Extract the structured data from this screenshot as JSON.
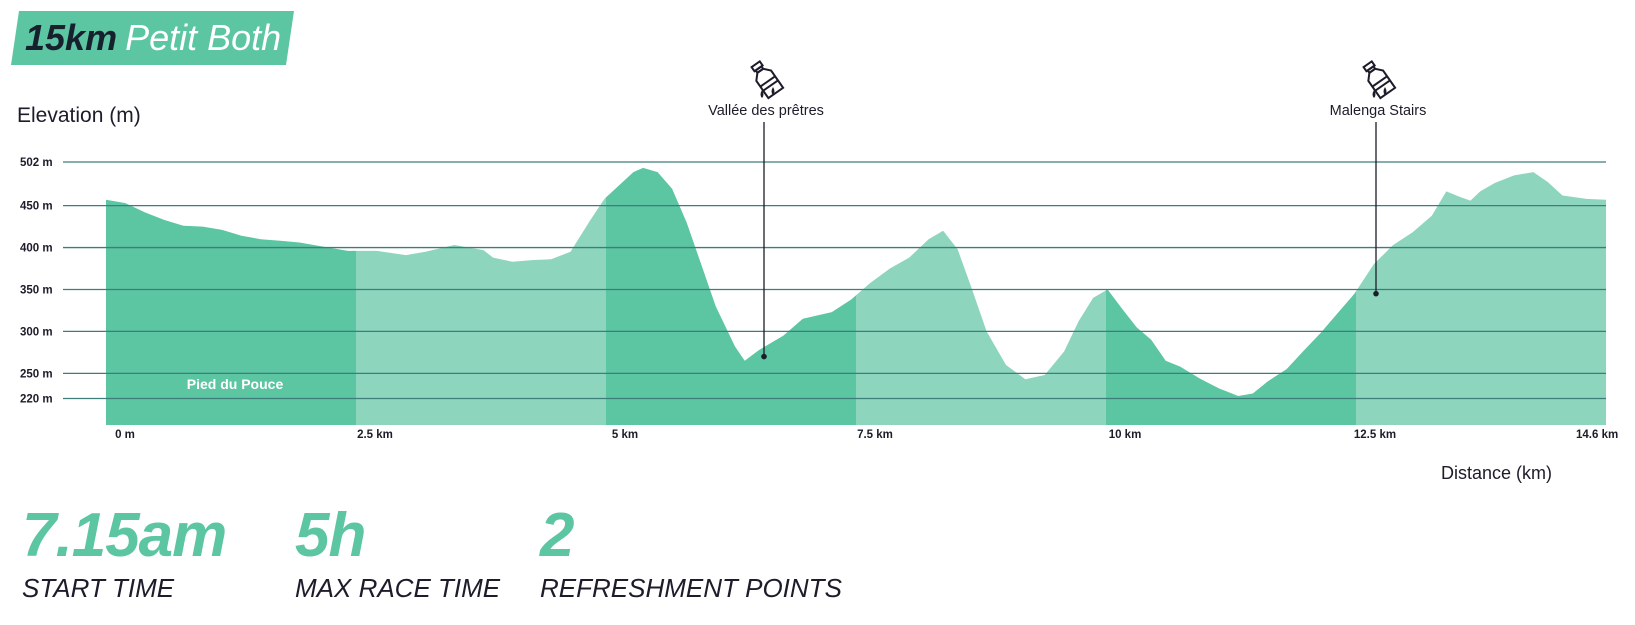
{
  "header": {
    "distance": "15km",
    "name": "Petit Both",
    "banner_color": "#5cc5a2"
  },
  "colors": {
    "dark_segment": "#5cc5a2",
    "light_segment": "#8dd6bd",
    "gridline": "#3d7d7a",
    "text": "#1c1c2a"
  },
  "chart_data": {
    "type": "area",
    "ylabel": "Elevation (m)",
    "xlabel": "Distance (km)",
    "y_ticks": [
      {
        "value": 502,
        "label": "502 m"
      },
      {
        "value": 450,
        "label": "450 m"
      },
      {
        "value": 400,
        "label": "400 m"
      },
      {
        "value": 350,
        "label": "350 m"
      },
      {
        "value": 300,
        "label": "300 m"
      },
      {
        "value": 250,
        "label": "250 m"
      },
      {
        "value": 220,
        "label": "220 m"
      }
    ],
    "x_ticks": [
      {
        "value": 0,
        "label": "0 m"
      },
      {
        "value": 2.5,
        "label": "2.5 km"
      },
      {
        "value": 5,
        "label": "5 km"
      },
      {
        "value": 7.5,
        "label": "7.5 km"
      },
      {
        "value": 10,
        "label": "10 km"
      },
      {
        "value": 12.5,
        "label": "12.5 km"
      },
      {
        "value": 14.6,
        "label": "14.6 km"
      }
    ],
    "xlim": [
      0,
      14.6
    ],
    "segments": [
      {
        "from": 0,
        "to": 2.5,
        "shade": "dark"
      },
      {
        "from": 2.5,
        "to": 5,
        "shade": "light"
      },
      {
        "from": 5,
        "to": 7.5,
        "shade": "dark"
      },
      {
        "from": 7.5,
        "to": 10,
        "shade": "light"
      },
      {
        "from": 10,
        "to": 12.5,
        "shade": "dark"
      },
      {
        "from": 12.5,
        "to": 14.6,
        "shade": "light"
      }
    ],
    "profile": [
      [
        0,
        457
      ],
      [
        0.2,
        453
      ],
      [
        0.4,
        442
      ],
      [
        0.6,
        433
      ],
      [
        0.8,
        426
      ],
      [
        1.0,
        425
      ],
      [
        1.2,
        421
      ],
      [
        1.4,
        414
      ],
      [
        1.6,
        410
      ],
      [
        1.8,
        408
      ],
      [
        2.0,
        406
      ],
      [
        2.2,
        402
      ],
      [
        2.5,
        396
      ],
      [
        2.8,
        396
      ],
      [
        3.1,
        391
      ],
      [
        3.3,
        395
      ],
      [
        3.6,
        403
      ],
      [
        3.9,
        397
      ],
      [
        4.0,
        388
      ],
      [
        4.2,
        383
      ],
      [
        4.4,
        385
      ],
      [
        4.6,
        386
      ],
      [
        4.8,
        395
      ],
      [
        5.0,
        432
      ],
      [
        5.15,
        458
      ],
      [
        5.3,
        474
      ],
      [
        5.45,
        490
      ],
      [
        5.55,
        495
      ],
      [
        5.7,
        490
      ],
      [
        5.85,
        470
      ],
      [
        6.0,
        430
      ],
      [
        6.15,
        380
      ],
      [
        6.3,
        330
      ],
      [
        6.5,
        282
      ],
      [
        6.6,
        265
      ],
      [
        6.75,
        278
      ],
      [
        7.0,
        295
      ],
      [
        7.2,
        315
      ],
      [
        7.5,
        323
      ],
      [
        7.7,
        338
      ],
      [
        7.9,
        358
      ],
      [
        8.1,
        375
      ],
      [
        8.3,
        388
      ],
      [
        8.5,
        410
      ],
      [
        8.65,
        420
      ],
      [
        8.8,
        398
      ],
      [
        8.95,
        350
      ],
      [
        9.1,
        300
      ],
      [
        9.3,
        260
      ],
      [
        9.5,
        243
      ],
      [
        9.7,
        248
      ],
      [
        9.9,
        276
      ],
      [
        10.05,
        312
      ],
      [
        10.2,
        340
      ],
      [
        10.35,
        350
      ],
      [
        10.5,
        327
      ],
      [
        10.65,
        305
      ],
      [
        10.8,
        290
      ],
      [
        10.95,
        265
      ],
      [
        11.1,
        258
      ],
      [
        11.3,
        244
      ],
      [
        11.5,
        232
      ],
      [
        11.7,
        223
      ],
      [
        11.85,
        226
      ],
      [
        12.0,
        240
      ],
      [
        12.2,
        255
      ],
      [
        12.4,
        280
      ],
      [
        12.55,
        298
      ],
      [
        12.7,
        318
      ],
      [
        12.9,
        345
      ],
      [
        13.1,
        380
      ],
      [
        13.3,
        403
      ],
      [
        13.5,
        418
      ],
      [
        13.7,
        438
      ],
      [
        13.85,
        467
      ],
      [
        14.0,
        460
      ],
      [
        14.1,
        456
      ],
      [
        14.2,
        467
      ],
      [
        14.35,
        477
      ],
      [
        14.55,
        486
      ],
      [
        14.75,
        490
      ],
      [
        14.9,
        478
      ],
      [
        15.05,
        462
      ],
      [
        15.3,
        458
      ],
      [
        15.5,
        457
      ]
    ],
    "annotations": [
      {
        "label": "Vallée des prêtres",
        "x": 6.5,
        "y": 270,
        "icon": "water-bottle-icon"
      },
      {
        "label": "Malenga Stairs",
        "x": 12.65,
        "y": 345,
        "icon": "water-bottle-icon"
      }
    ],
    "area_labels": [
      {
        "label": "Pied du Pouce",
        "x": 1.25,
        "y": 234
      }
    ]
  },
  "stats": [
    {
      "value": "7.15am",
      "label": "START TIME"
    },
    {
      "value": "5h",
      "label": "MAX RACE TIME"
    },
    {
      "value": "2",
      "label": "REFRESHMENT POINTS"
    }
  ]
}
